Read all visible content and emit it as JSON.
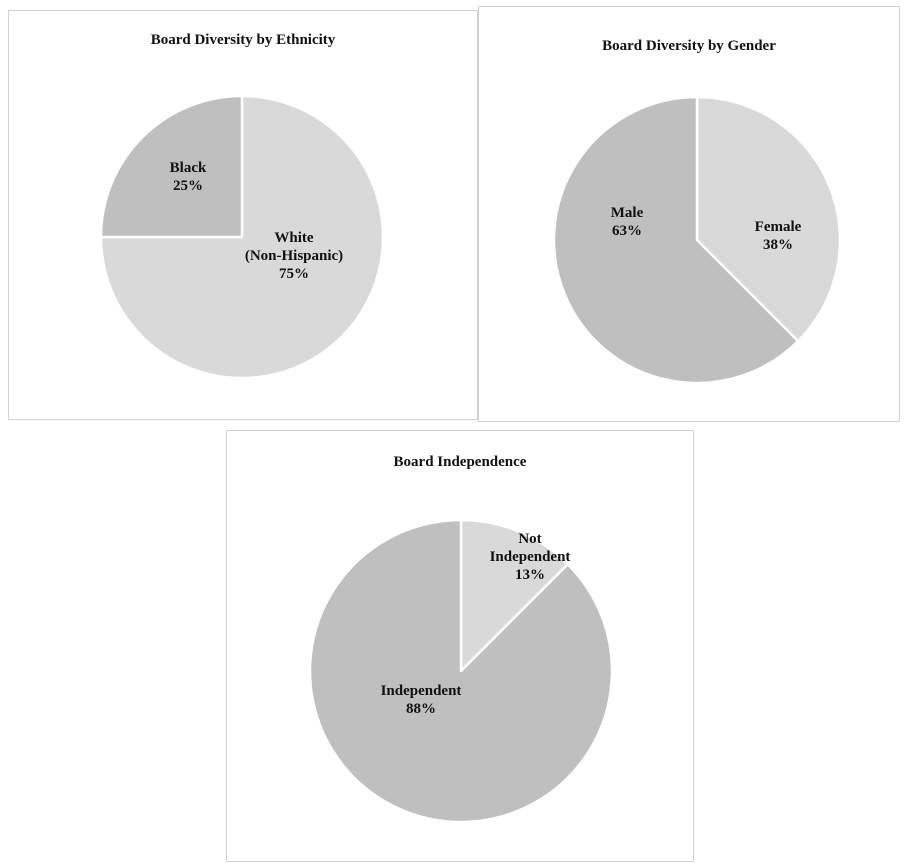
{
  "chart_data": [
    {
      "type": "pie",
      "title": "Board Diversity by Ethnicity",
      "slices": [
        {
          "label": [
            "White",
            "(Non-Hispanic)"
          ],
          "percent_label": "75%",
          "value": 75,
          "color": "#d9d9d9"
        },
        {
          "label": [
            "Black"
          ],
          "percent_label": "25%",
          "value": 25,
          "color": "#bfbfbf"
        }
      ],
      "start_angle_deg": 0,
      "direction": "clockwise",
      "legend": "none"
    },
    {
      "type": "pie",
      "title": "Board Diversity by Gender",
      "slices": [
        {
          "label": [
            "Female"
          ],
          "percent_label": "38%",
          "value": 37.5,
          "color": "#d9d9d9"
        },
        {
          "label": [
            "Male"
          ],
          "percent_label": "63%",
          "value": 62.5,
          "color": "#bfbfbf"
        }
      ],
      "start_angle_deg": 0,
      "direction": "clockwise",
      "legend": "none"
    },
    {
      "type": "pie",
      "title": "Board Independence",
      "slices": [
        {
          "label": [
            "Not",
            "Independent"
          ],
          "percent_label": "13%",
          "value": 12.5,
          "color": "#d9d9d9"
        },
        {
          "label": [
            "Independent"
          ],
          "percent_label": "88%",
          "value": 87.5,
          "color": "#bfbfbf"
        }
      ],
      "start_angle_deg": 0,
      "direction": "clockwise",
      "legend": "none"
    }
  ]
}
